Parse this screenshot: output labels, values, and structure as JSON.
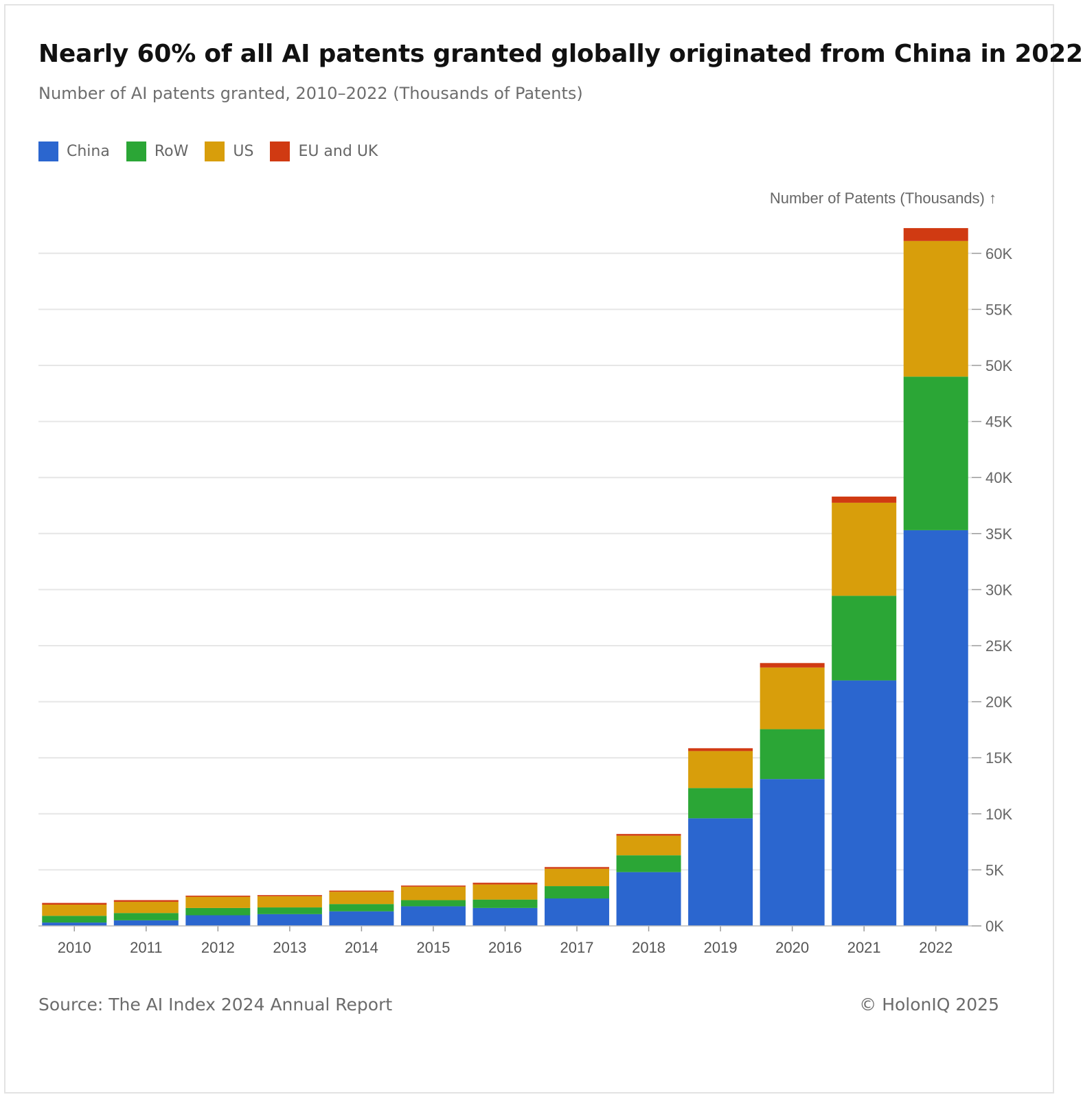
{
  "header": {
    "title": "Nearly 60% of all AI patents granted globally originated from China in 2022",
    "subtitle": "Number of AI patents granted, 2010–2022 (Thousands of Patents)"
  },
  "legend": [
    {
      "label": "China",
      "color": "#2b66cf"
    },
    {
      "label": "RoW",
      "color": "#2ba636"
    },
    {
      "label": "US",
      "color": "#d89e0b"
    },
    {
      "label": "EU and UK",
      "color": "#d03a12"
    }
  ],
  "footer": {
    "source": "Source: The AI Index 2024 Annual Report",
    "copyright": "© HolonIQ 2025"
  },
  "chart_data": {
    "type": "bar",
    "stacked": true,
    "ylabel": "Number of Patents (Thousands) ↑",
    "ylim": [
      0,
      62000
    ],
    "yticks": [
      0,
      5000,
      10000,
      15000,
      20000,
      25000,
      30000,
      35000,
      40000,
      45000,
      50000,
      55000,
      60000
    ],
    "ytick_labels": [
      "0K",
      "5K",
      "10K",
      "15K",
      "20K",
      "25K",
      "30K",
      "35K",
      "40K",
      "45K",
      "50K",
      "55K",
      "60K"
    ],
    "grid": true,
    "legend_position": "top-left",
    "y_axis_position": "right",
    "categories": [
      "2010",
      "2011",
      "2012",
      "2013",
      "2014",
      "2015",
      "2016",
      "2017",
      "2018",
      "2019",
      "2020",
      "2021",
      "2022"
    ],
    "series": [
      {
        "name": "China",
        "color": "#2b66cf",
        "values": [
          300,
          500,
          950,
          1050,
          1300,
          1750,
          1600,
          2450,
          4800,
          9600,
          13100,
          21900,
          35300
        ]
      },
      {
        "name": "RoW",
        "color": "#2ba636",
        "values": [
          600,
          650,
          650,
          600,
          650,
          550,
          750,
          1100,
          1500,
          2700,
          4450,
          7550,
          13700
        ]
      },
      {
        "name": "US",
        "color": "#d89e0b",
        "values": [
          1000,
          1000,
          1000,
          1000,
          1100,
          1200,
          1350,
          1550,
          1750,
          3300,
          5500,
          8300,
          12100
        ]
      },
      {
        "name": "EU and UK",
        "color": "#d03a12",
        "values": [
          150,
          150,
          100,
          100,
          100,
          100,
          150,
          150,
          150,
          250,
          400,
          550,
          1150
        ]
      }
    ]
  }
}
